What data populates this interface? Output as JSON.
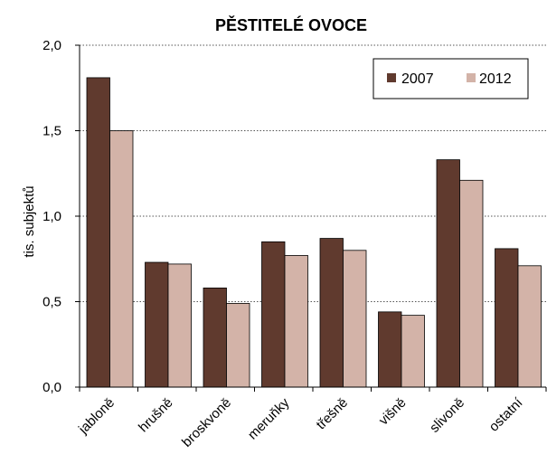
{
  "chart_data": {
    "type": "bar",
    "title": "PĚSTITELÉ OVOCE",
    "ylabel": "tis. subjektů",
    "xlabel": "",
    "ylim": [
      0,
      2
    ],
    "yticks": [
      "0,0",
      "0,5",
      "1,0",
      "1,5",
      "2,0"
    ],
    "categories": [
      "jabloně",
      "hrušně",
      "broskvoně",
      "meruňky",
      "třešně",
      "višně",
      "slivoně",
      "ostatní"
    ],
    "series": [
      {
        "name": "2007",
        "color": "#603A2E",
        "values": [
          1.81,
          0.73,
          0.58,
          0.85,
          0.87,
          0.44,
          1.33,
          0.81
        ]
      },
      {
        "name": "2012",
        "color": "#D3B3A8",
        "values": [
          1.5,
          0.72,
          0.49,
          0.77,
          0.8,
          0.42,
          1.21,
          0.71
        ]
      }
    ],
    "grid": true,
    "grid_style": "dotted",
    "legend_position": "top-right"
  }
}
